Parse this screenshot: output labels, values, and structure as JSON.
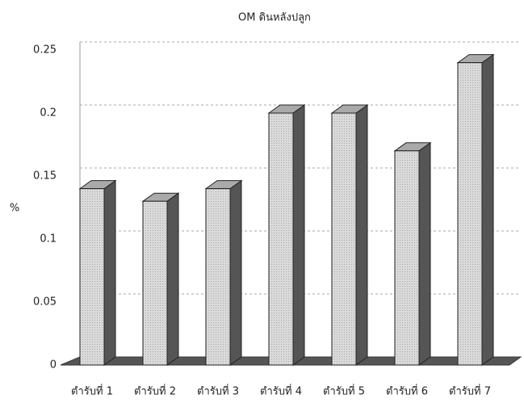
{
  "chart_data": {
    "type": "bar3d",
    "title": "OM ดินหลังปลูก",
    "y_label": "%",
    "categories": [
      "ตำรับที่ 1",
      "ตำรับที่ 2",
      "ตำรับที่ 3",
      "ตำรับที่ 4",
      "ตำรับที่ 5",
      "ตำรับที่ 6",
      "ตำรับที่ 7"
    ],
    "values": [
      0.14,
      0.13,
      0.14,
      0.2,
      0.2,
      0.17,
      0.24
    ],
    "color": "#d4d4d4",
    "ylim": [
      0,
      0.25
    ],
    "yticks": [
      0,
      0.05,
      0.1,
      0.15,
      0.2,
      0.25
    ],
    "grid": true
  }
}
